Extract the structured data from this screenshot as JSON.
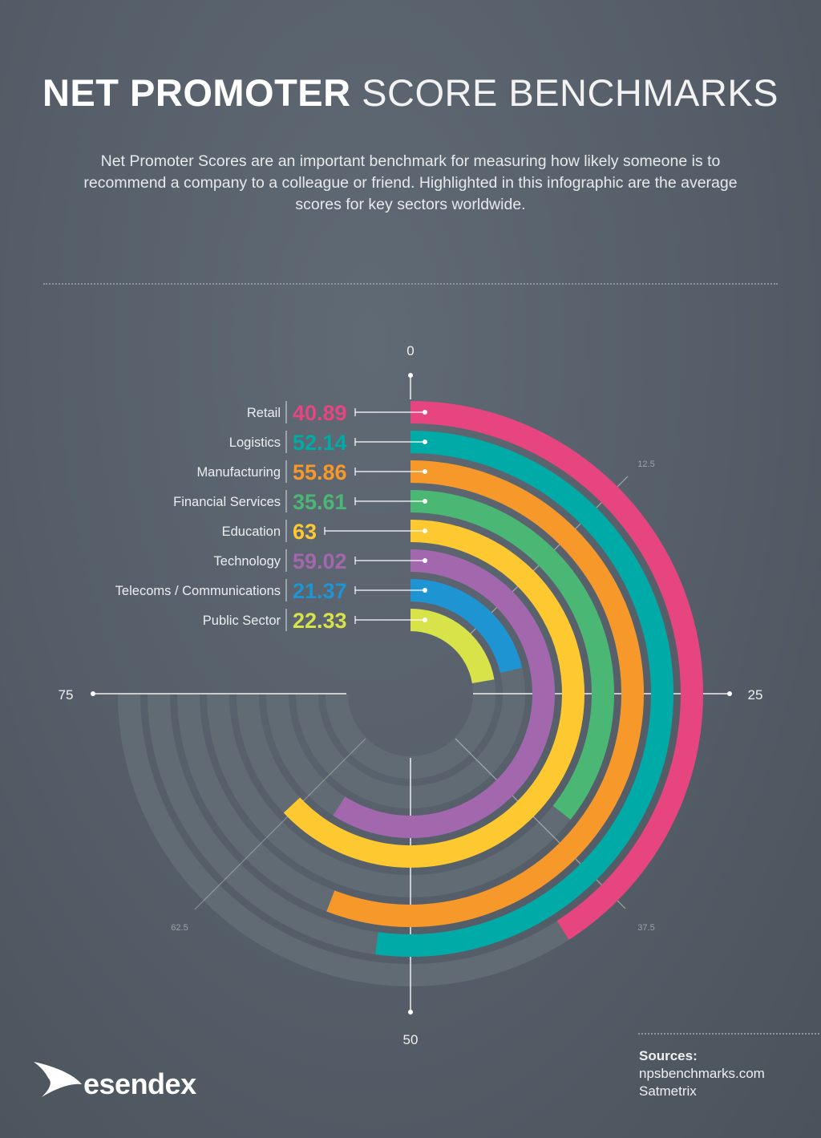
{
  "title": {
    "bold": "NET PROMOTER",
    "light": "SCORE BENCHMARKS"
  },
  "intro": "Net Promoter Scores are an important benchmark for measuring how likely someone is to recommend a company to a colleague or friend. Highlighted in this infographic are the average scores for key sectors worldwide.",
  "chart_data": {
    "type": "radial-bar",
    "range": [
      0,
      100
    ],
    "major_ticks": [
      "0",
      "25",
      "50",
      "75"
    ],
    "minor_ticks": [
      "12.5",
      "37.5",
      "62.5"
    ],
    "categories": [
      "Retail",
      "Logistics",
      "Manufacturing",
      "Financial Services",
      "Education",
      "Technology",
      "Telecoms / Communications",
      "Public Sector"
    ],
    "labels": [
      "40.89",
      "52.14",
      "55.86",
      "35.61",
      "63",
      "59.02",
      "21.37",
      "22.33"
    ],
    "values": [
      40.89,
      52.14,
      55.86,
      35.61,
      63,
      59.02,
      21.37,
      22.33
    ],
    "colors": [
      "#e6457f",
      "#00aaa6",
      "#f6992a",
      "#4bb774",
      "#fdc830",
      "#a267ad",
      "#1f94d2",
      "#d8e249"
    ],
    "track_color": "#616b74"
  },
  "sources": {
    "heading": "Sources:",
    "items": [
      "npsbenchmarks.com",
      "Satmetrix"
    ]
  },
  "logo": {
    "text": "esendex"
  }
}
